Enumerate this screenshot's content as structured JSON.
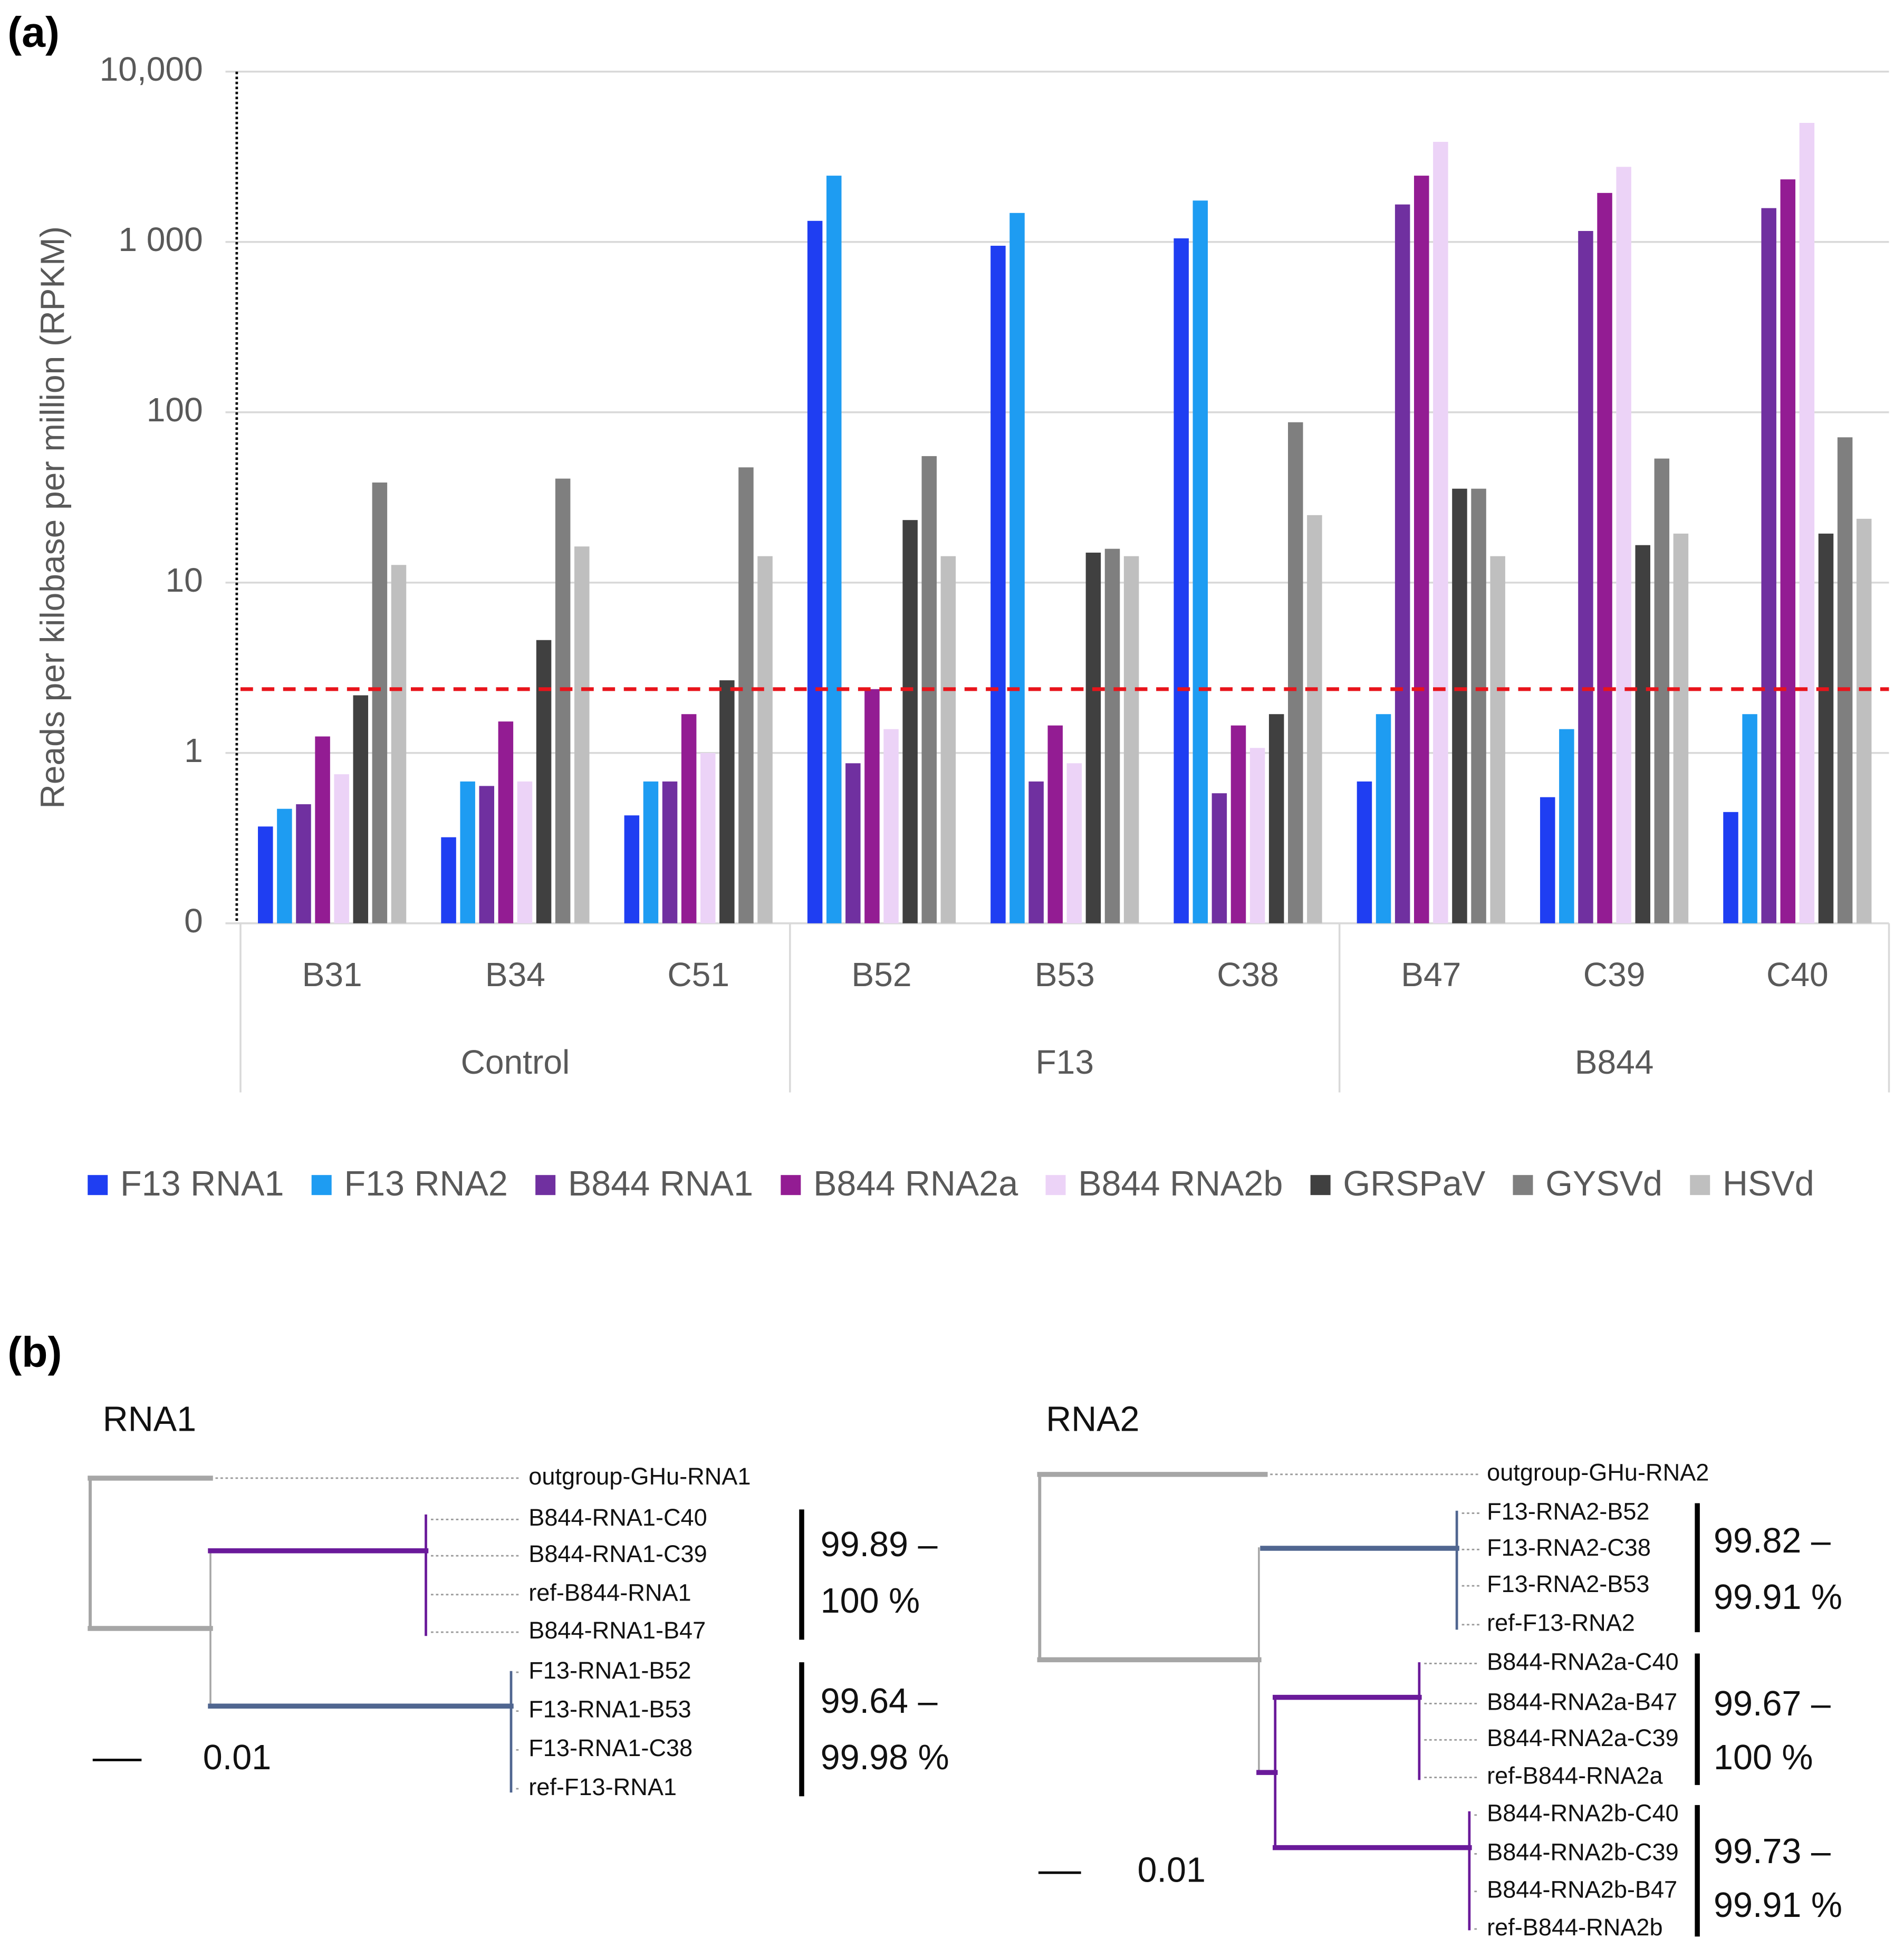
{
  "chart_data": {
    "type": "bar",
    "panel_label": "(a)",
    "y_label": "Reads per kilobase per million (RPKM)",
    "log_scale": true,
    "grid": true,
    "ylim": [
      0.1,
      10000
    ],
    "yticks": [
      {
        "value": 0.1,
        "label": "0"
      },
      1,
      10,
      100,
      {
        "value": 1000,
        "label": "1 000"
      },
      {
        "value": 10000,
        "label": "10,000"
      }
    ],
    "threshold": 2.37,
    "threshold_color": "#e8141b",
    "legend": "bottom",
    "categories": [
      "B31",
      "B34",
      "C51",
      "B52",
      "B53",
      "C38",
      "B47",
      "C39",
      "C40"
    ],
    "groups": [
      "Control",
      "F13",
      "B844"
    ],
    "series": [
      {
        "name": "F13 RNA1",
        "color": "#1f3ef2",
        "values": [
          0.37,
          0.32,
          0.43,
          1330,
          950,
          1050,
          0.68,
          0.55,
          0.45
        ]
      },
      {
        "name": "F13 RNA2",
        "color": "#1e9cf2",
        "values": [
          0.47,
          0.68,
          0.68,
          2450,
          1480,
          1750,
          1.69,
          1.38,
          1.69
        ]
      },
      {
        "name": "B844 RNA1",
        "color": "#7030a0",
        "values": [
          0.5,
          0.64,
          0.68,
          0.87,
          0.68,
          0.58,
          1660,
          1160,
          1580
        ]
      },
      {
        "name": "B844 RNA2a",
        "color": "#931c93",
        "values": [
          1.25,
          1.53,
          1.69,
          2.37,
          1.45,
          1.45,
          2450,
          1940,
          2330
        ]
      },
      {
        "name": "B844 RNA2b",
        "color": "#ecd3f7",
        "values": [
          0.75,
          0.68,
          1.0,
          1.38,
          0.87,
          1.07,
          3870,
          2760,
          5000
        ]
      },
      {
        "name": "GRSPaV",
        "color": "#404040",
        "values": [
          2.18,
          4.6,
          2.67,
          23.3,
          15.0,
          1.69,
          35.6,
          16.6,
          19.4
        ]
      },
      {
        "name": "GYSVd",
        "color": "#7f7f7f",
        "values": [
          38.7,
          40.8,
          47.5,
          55.3,
          15.8,
          87.4,
          35.6,
          53.5,
          71.3
        ]
      },
      {
        "name": "HSVd",
        "color": "#bfbfbf",
        "values": [
          12.7,
          16.3,
          14.3,
          14.3,
          14.3,
          24.9,
          14.3,
          19.4,
          23.7
        ]
      }
    ]
  },
  "tree_panel": {
    "label": "(b)",
    "trees": [
      {
        "title": "RNA1",
        "outgroup": "outgroup-GHu-RNA1",
        "scale_label": "0.01",
        "clades": [
          {
            "leaves": [
              "B844-RNA1-C40",
              "B844-RNA1-C39",
              "ref-B844-RNA1",
              "B844-RNA1-B47"
            ],
            "identity": [
              "99.89 –",
              "100 %"
            ]
          },
          {
            "leaves": [
              "F13-RNA1-B52",
              "F13-RNA1-B53",
              "F13-RNA1-C38",
              "ref-F13-RNA1"
            ],
            "identity": [
              "99.64 –",
              "99.98 %"
            ]
          }
        ]
      },
      {
        "title": "RNA2",
        "outgroup": "outgroup-GHu-RNA2",
        "scale_label": "0.01",
        "clades": [
          {
            "leaves": [
              "F13-RNA2-B52",
              "F13-RNA2-C38",
              "F13-RNA2-B53",
              "ref-F13-RNA2"
            ],
            "identity": [
              "99.82 –",
              "99.91 %"
            ]
          },
          {
            "leaves": [
              "B844-RNA2a-C40",
              "B844-RNA2a-B47",
              "B844-RNA2a-C39",
              "ref-B844-RNA2a"
            ],
            "identity": [
              "99.67 –",
              "100 %"
            ]
          },
          {
            "leaves": [
              "B844-RNA2b-C40",
              "B844-RNA2b-C39",
              "B844-RNA2b-B47",
              "ref-B844-RNA2b"
            ],
            "identity": [
              "99.73 –",
              "99.91 %"
            ]
          }
        ]
      }
    ]
  }
}
